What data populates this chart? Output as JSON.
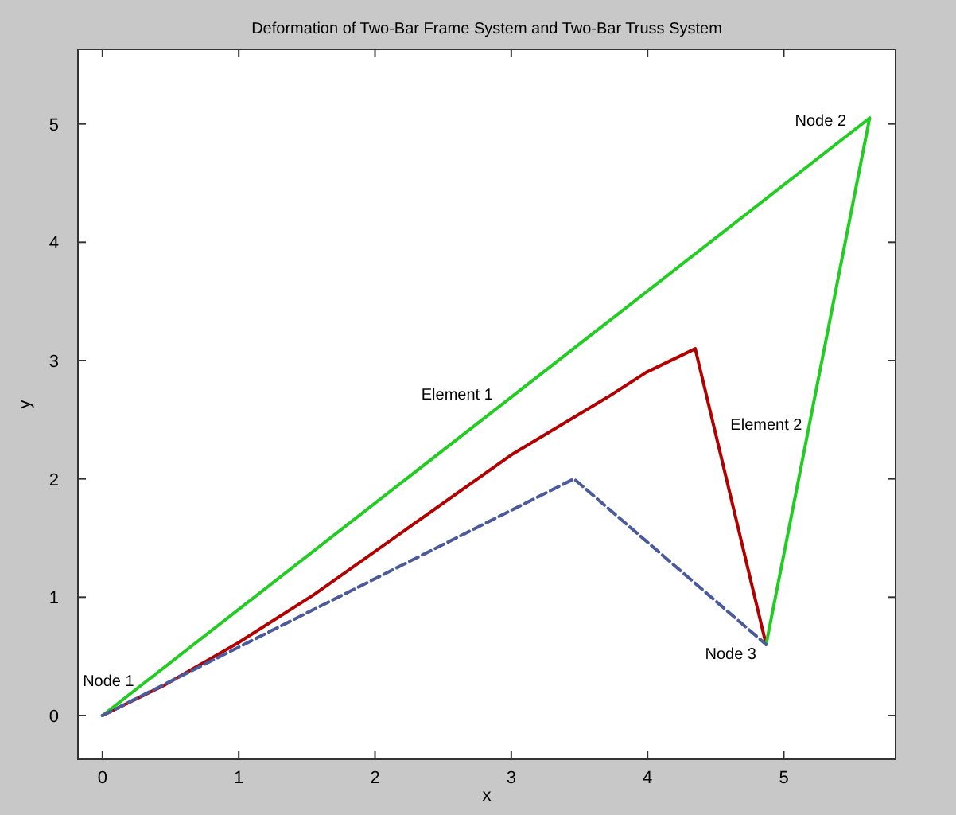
{
  "chart_data": {
    "type": "line",
    "title": "Deformation of Two-Bar Frame System and Two-Bar Truss System",
    "xlabel": "x",
    "ylabel": "y",
    "xlim": [
      -0.18,
      5.82
    ],
    "ylim": [
      -0.37,
      5.63
    ],
    "xticks": [
      0,
      1,
      2,
      3,
      4,
      5
    ],
    "yticks": [
      0,
      1,
      2,
      3,
      4,
      5
    ],
    "grid": false,
    "marker": "none",
    "series": [
      {
        "color": "#b00000",
        "line_style": "solid",
        "x": [
          0,
          0.46,
          0.99,
          1.55,
          3.01,
          3.72,
          3.99,
          4.35,
          4.87
        ],
        "values": [
          0,
          0.26,
          0.61,
          1.02,
          2.21,
          2.7,
          2.9,
          3.1,
          0.6
        ]
      },
      {
        "color": "#22cc22",
        "line_style": "solid",
        "x": [
          0,
          5.63,
          4.87
        ],
        "values": [
          0,
          5.05,
          0.6
        ]
      },
      {
        "color": "#4a5a9a",
        "line_style": "dashed",
        "x": [
          0,
          3.46,
          4.87
        ],
        "values": [
          0,
          2.0,
          0.6
        ]
      }
    ],
    "annotations": [
      "Node 1",
      "Node 2",
      "Node 3",
      "Element 1",
      "Element 2"
    ]
  }
}
